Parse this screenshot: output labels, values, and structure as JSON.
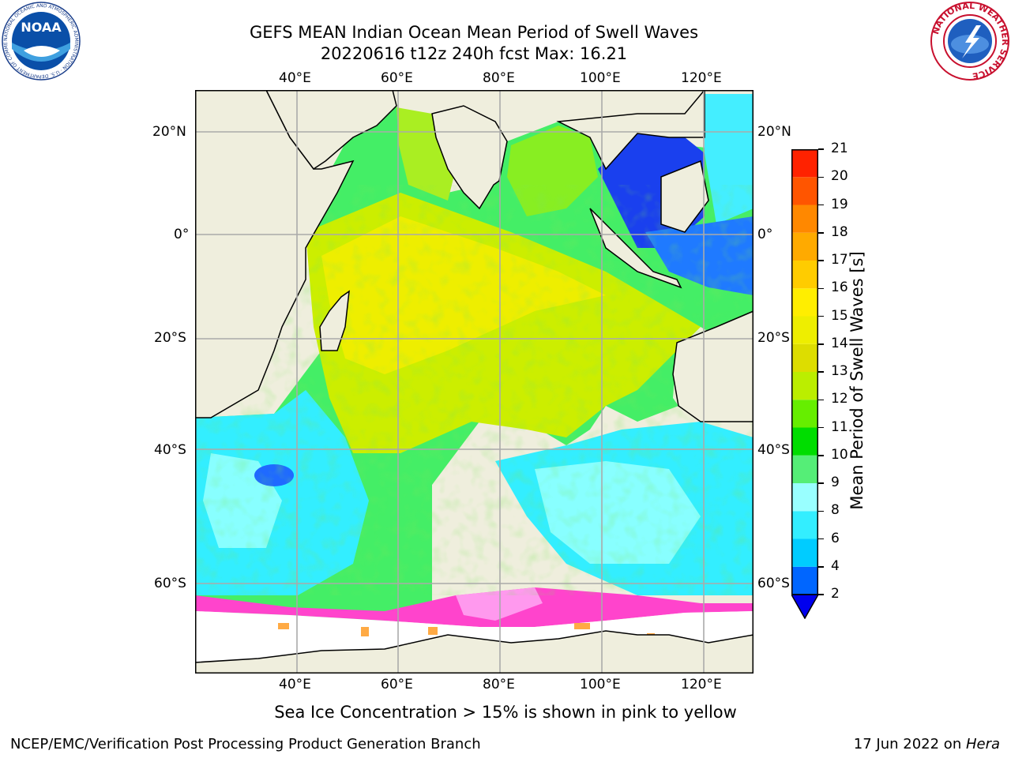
{
  "header": {
    "title_line1": "GEFS MEAN Indian Ocean Mean Period of Swell Waves",
    "title_line2": "20220616 t12z 240h fcst   Max: 16.21"
  },
  "logos": {
    "left": "NOAA",
    "left_ring": "NATIONAL OCEANIC AND ATMOSPHERIC ADMINISTRATION · U.S. DEPARTMENT OF COMMERCE",
    "right_ring": "NATIONAL WEATHER SERVICE"
  },
  "map": {
    "lon_ticks": [
      "40°E",
      "60°E",
      "80°E",
      "100°E",
      "120°E"
    ],
    "lat_ticks": [
      "20°N",
      "0°",
      "20°S",
      "40°S",
      "60°S"
    ]
  },
  "colorbar": {
    "label": "Mean Period of Swell Waves [s]",
    "ticks": [
      "2",
      "4",
      "6",
      "8",
      "9",
      "10",
      "11",
      "12",
      "13",
      "14",
      "15",
      "16",
      "17",
      "18",
      "19",
      "20",
      "21"
    ],
    "colors": [
      "#0066ff",
      "#00ccff",
      "#33eeff",
      "#99ffff",
      "#55ee77",
      "#00dd00",
      "#66ee00",
      "#bbee00",
      "#dddd00",
      "#eeee00",
      "#ffee00",
      "#ffcc00",
      "#ffaa00",
      "#ff8800",
      "#ff5500",
      "#ff2200"
    ],
    "extend_color": "#0000ee"
  },
  "note": "Sea Ice Concentration > 15% is shown in pink to yellow",
  "footer": {
    "left": "NCEP/EMC/Verification Post Processing Product Generation Branch",
    "date": "17 Jun 2022 on ",
    "machine": "Hera"
  }
}
